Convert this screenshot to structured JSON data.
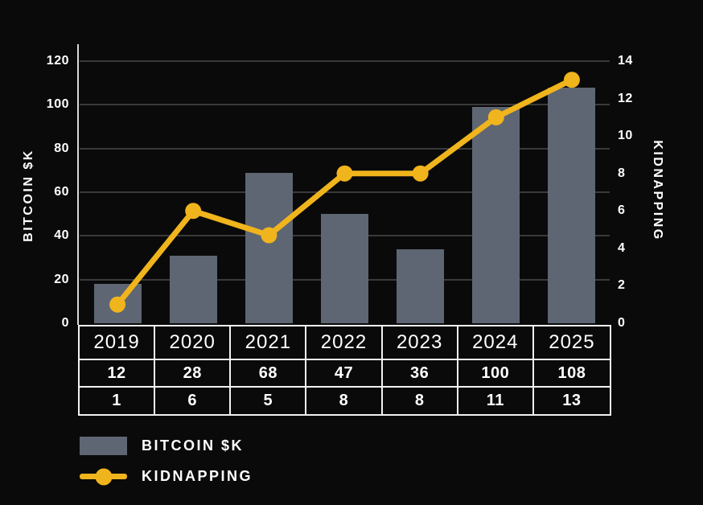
{
  "colors": {
    "background": "#0a0a0a",
    "bar": "#5e6674",
    "accent": "#f0b41c",
    "gridline": "#3a3a3a",
    "axis_line": "#d9d9d9",
    "table_border": "#f2f2f2",
    "text": "#ffffff"
  },
  "chart_data": {
    "type": "combo-bar-line",
    "categories": [
      "2019",
      "2020",
      "2021",
      "2022",
      "2023",
      "2024",
      "2025"
    ],
    "series": [
      {
        "name": "BITCOIN $K",
        "type": "bar",
        "axis": "left",
        "color": "#5e6674",
        "values": [
          12,
          28,
          68,
          47,
          36,
          100,
          108
        ],
        "rendered_values": [
          18,
          31,
          69,
          50,
          34,
          99,
          108
        ]
      },
      {
        "name": "KIDNAPPING",
        "type": "line",
        "axis": "right",
        "color": "#f0b41c",
        "values": [
          1,
          6,
          5,
          8,
          8,
          11,
          13
        ],
        "rendered_values": [
          1,
          6,
          4.7,
          8,
          8,
          11,
          13
        ]
      }
    ],
    "left_axis": {
      "label": "BITCOIN $K",
      "min": 0,
      "max": 120,
      "ticks": [
        0,
        20,
        40,
        60,
        80,
        100,
        120
      ]
    },
    "right_axis": {
      "label": "KIDNAPPING",
      "min": 0,
      "max": 14,
      "ticks": [
        0,
        2,
        4,
        6,
        8,
        10,
        12,
        14
      ]
    },
    "grid": true,
    "legend_position": "bottom-left",
    "title": ""
  },
  "table": {
    "header_row": [
      "2019",
      "2020",
      "2021",
      "2022",
      "2023",
      "2024",
      "2025"
    ],
    "rows": [
      {
        "name": "BITCOIN $K",
        "values": [
          "12",
          "28",
          "68",
          "47",
          "36",
          "100",
          "108"
        ]
      },
      {
        "name": "KIDNAPPING",
        "values": [
          "1",
          "6",
          "5",
          "8",
          "8",
          "11",
          "13"
        ]
      }
    ]
  },
  "legend": {
    "items": [
      {
        "label": "BITCOIN $K",
        "marker": "bar-swatch"
      },
      {
        "label": "KIDNAPPING",
        "marker": "line-dot"
      }
    ]
  }
}
